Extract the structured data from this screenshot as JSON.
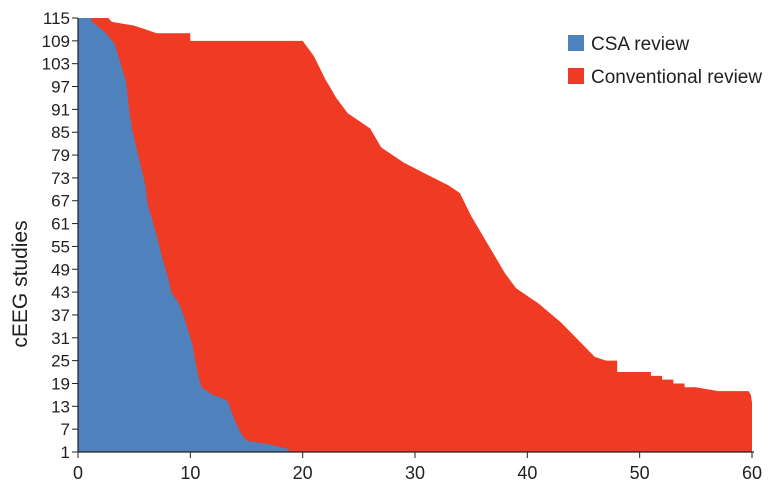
{
  "chart_data": {
    "type": "area",
    "title": "",
    "xlabel": "",
    "ylabel": "cEEG studies",
    "xlim": [
      0,
      60
    ],
    "ylim": [
      1,
      115
    ],
    "x_ticks": [
      0,
      10,
      20,
      30,
      40,
      50,
      60
    ],
    "y_ticks": [
      1,
      7,
      13,
      19,
      25,
      31,
      37,
      43,
      49,
      55,
      61,
      67,
      73,
      79,
      85,
      91,
      97,
      103,
      109,
      115
    ],
    "grid": false,
    "legend_position": "top-right",
    "series": [
      {
        "name": "Conventional review",
        "color": "#ef3b24",
        "points": [
          [
            60,
            1
          ],
          [
            60,
            14
          ],
          [
            59.9,
            16
          ],
          [
            59.7,
            17
          ],
          [
            57,
            17
          ],
          [
            55,
            18
          ],
          [
            54,
            18
          ],
          [
            54,
            19
          ],
          [
            53,
            19
          ],
          [
            53,
            20
          ],
          [
            52,
            20
          ],
          [
            52,
            21
          ],
          [
            51,
            21
          ],
          [
            51,
            22
          ],
          [
            48,
            22
          ],
          [
            48,
            25
          ],
          [
            47,
            25
          ],
          [
            46,
            26
          ],
          [
            45,
            29
          ],
          [
            43,
            35
          ],
          [
            41,
            40
          ],
          [
            39,
            44
          ],
          [
            38,
            48
          ],
          [
            37,
            53
          ],
          [
            36,
            58
          ],
          [
            35,
            63
          ],
          [
            34,
            69
          ],
          [
            33,
            71
          ],
          [
            31,
            74
          ],
          [
            29,
            77
          ],
          [
            27,
            81
          ],
          [
            26,
            86
          ],
          [
            24,
            90
          ],
          [
            23,
            94
          ],
          [
            22,
            99
          ],
          [
            21,
            105
          ],
          [
            20,
            109
          ],
          [
            10,
            109
          ],
          [
            10,
            111
          ],
          [
            7,
            111
          ],
          [
            6,
            112
          ],
          [
            5,
            113
          ],
          [
            3,
            114
          ],
          [
            2.7,
            115
          ],
          [
            0,
            115
          ]
        ]
      },
      {
        "name": "CSA review",
        "color": "#4f81bd",
        "points": [
          [
            19,
            1
          ],
          [
            18.5,
            2
          ],
          [
            17,
            3
          ],
          [
            15,
            4
          ],
          [
            14.5,
            6
          ],
          [
            14,
            9
          ],
          [
            13.6,
            12
          ],
          [
            13.4,
            14
          ],
          [
            13,
            15
          ],
          [
            12,
            16
          ],
          [
            11.5,
            17
          ],
          [
            11,
            18
          ],
          [
            10.8,
            20
          ],
          [
            10.5,
            24
          ],
          [
            10.2,
            29
          ],
          [
            10,
            31
          ],
          [
            9.5,
            36
          ],
          [
            9,
            40
          ],
          [
            8.3,
            43
          ],
          [
            8,
            47
          ],
          [
            7.5,
            52
          ],
          [
            7,
            58
          ],
          [
            6.6,
            62
          ],
          [
            6.2,
            66
          ],
          [
            6,
            71
          ],
          [
            5.6,
            76
          ],
          [
            5.2,
            81
          ],
          [
            4.8,
            86
          ],
          [
            4.5,
            92
          ],
          [
            4.3,
            98
          ],
          [
            4,
            101
          ],
          [
            3.6,
            105
          ],
          [
            3.3,
            108
          ],
          [
            2.5,
            111
          ],
          [
            1.7,
            113
          ],
          [
            1.2,
            114
          ],
          [
            1.2,
            115
          ],
          [
            0,
            115
          ]
        ]
      }
    ]
  }
}
